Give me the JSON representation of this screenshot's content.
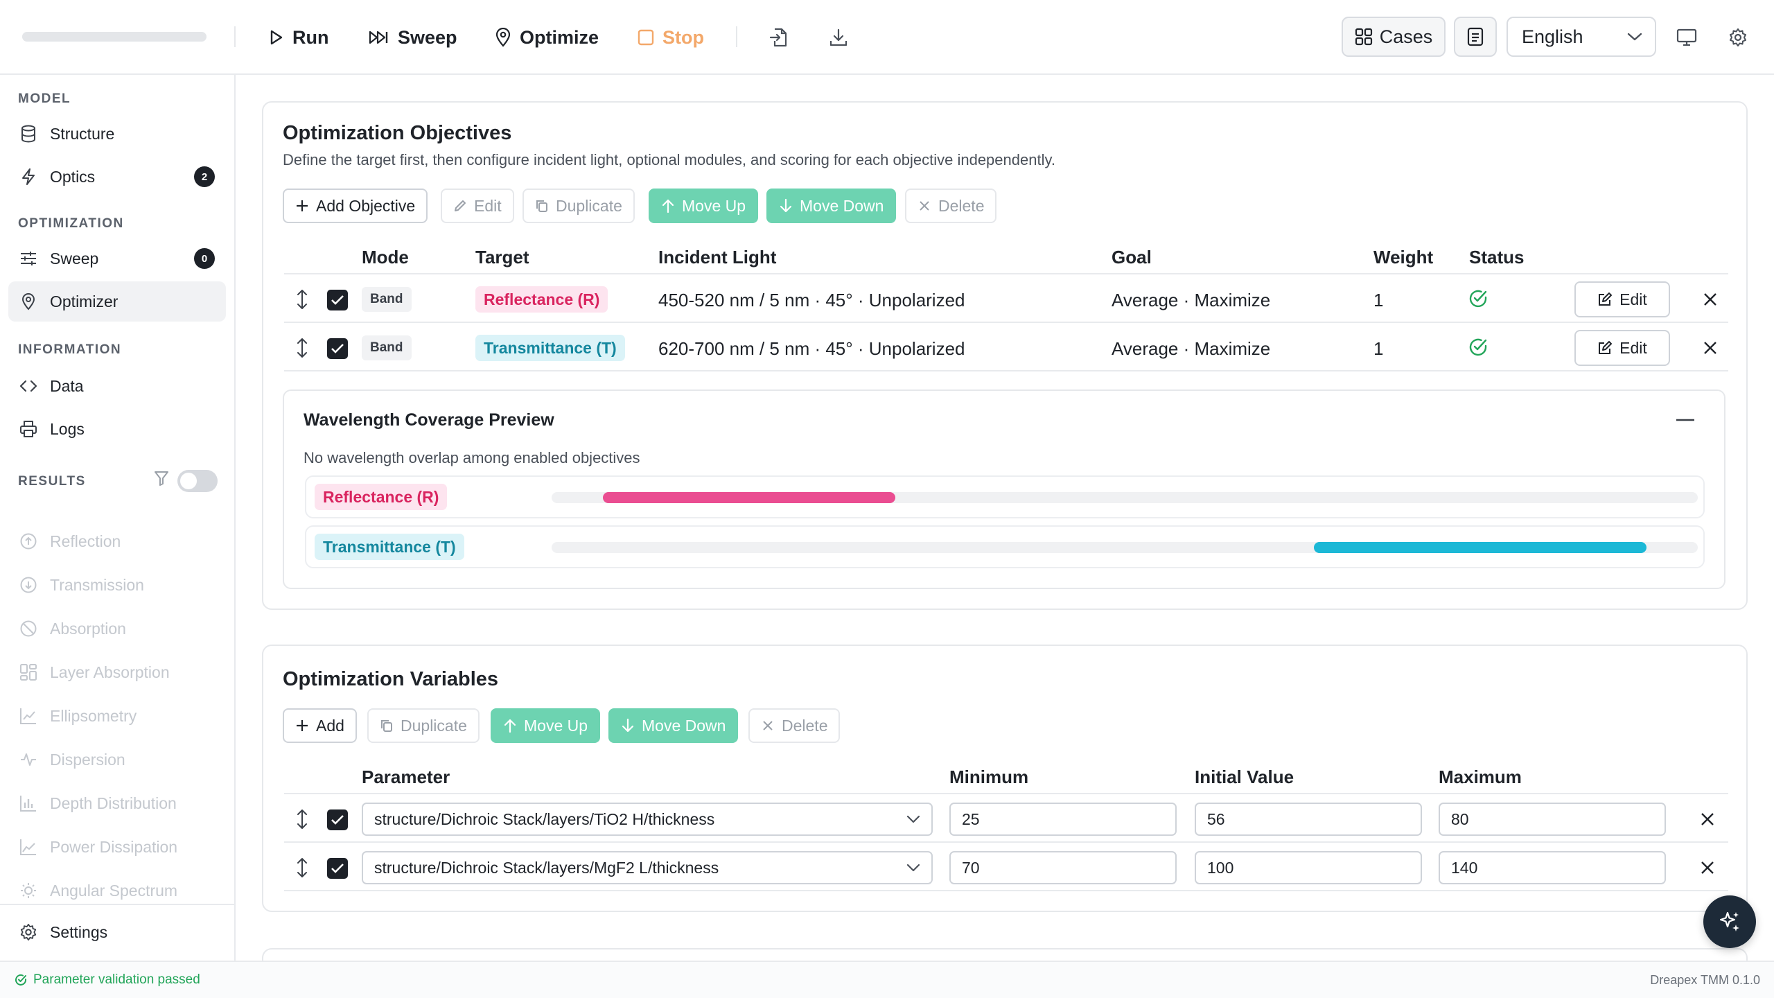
{
  "toolbar": {
    "run": "Run",
    "sweep": "Sweep",
    "optimize": "Optimize",
    "stop": "Stop",
    "cases": "Cases",
    "language": "English"
  },
  "sidebar": {
    "model_section": "MODEL",
    "structure": "Structure",
    "optics": "Optics",
    "optics_badge": "2",
    "optimization_section": "OPTIMIZATION",
    "sweep": "Sweep",
    "sweep_badge": "0",
    "optimizer": "Optimizer",
    "information_section": "INFORMATION",
    "data": "Data",
    "logs": "Logs",
    "results_section": "RESULTS",
    "results": [
      "Reflection",
      "Transmission",
      "Absorption",
      "Layer Absorption",
      "Ellipsometry",
      "Dispersion",
      "Depth Distribution",
      "Power Dissipation",
      "Angular Spectrum"
    ],
    "settings": "Settings"
  },
  "objectives": {
    "title": "Optimization Objectives",
    "subtitle": "Define the target first, then configure incident light, optional modules, and scoring for each objective independently.",
    "buttons": {
      "add": "Add Objective",
      "edit": "Edit",
      "duplicate": "Duplicate",
      "move_up": "Move Up",
      "move_down": "Move Down",
      "delete": "Delete"
    },
    "columns": [
      "Mode",
      "Target",
      "Incident Light",
      "Goal",
      "Weight",
      "Status"
    ],
    "rows": [
      {
        "mode": "Band",
        "target": "Reflectance (R)",
        "light": "450-520 nm / 5 nm · 45° · Unpolarized",
        "goal": "Average · Maximize",
        "weight": "1",
        "edit": "Edit"
      },
      {
        "mode": "Band",
        "target": "Transmittance (T)",
        "light": "620-700 nm / 5 nm · 45° · Unpolarized",
        "goal": "Average · Maximize",
        "weight": "1",
        "edit": "Edit"
      }
    ]
  },
  "preview": {
    "title": "Wavelength Coverage Preview",
    "message": "No wavelength overlap among enabled objectives",
    "tracks": [
      {
        "label": "Reflectance (R)",
        "start_fraction": 0.045,
        "end_fraction": 0.3,
        "color": "#ea4d91"
      },
      {
        "label": "Transmittance (T)",
        "start_fraction": 0.665,
        "end_fraction": 0.955,
        "color": "#1cb8d6"
      }
    ]
  },
  "variables": {
    "title": "Optimization Variables",
    "buttons": {
      "add": "Add",
      "duplicate": "Duplicate",
      "move_up": "Move Up",
      "move_down": "Move Down",
      "delete": "Delete"
    },
    "columns": [
      "Parameter",
      "Minimum",
      "Initial Value",
      "Maximum"
    ],
    "rows": [
      {
        "parameter": "structure/Dichroic Stack/layers/TiO2 H/thickness",
        "min": "25",
        "init": "56",
        "max": "80"
      },
      {
        "parameter": "structure/Dichroic Stack/layers/MgF2 L/thickness",
        "min": "70",
        "init": "100",
        "max": "140"
      }
    ]
  },
  "status": {
    "message": "Parameter validation passed",
    "version": "Dreapex TMM 0.1.0"
  },
  "colors": {
    "accent_green": "#6dd3b1",
    "reflectance": "#ea4d91",
    "transmittance": "#1cb8d6",
    "success": "#22a559"
  }
}
